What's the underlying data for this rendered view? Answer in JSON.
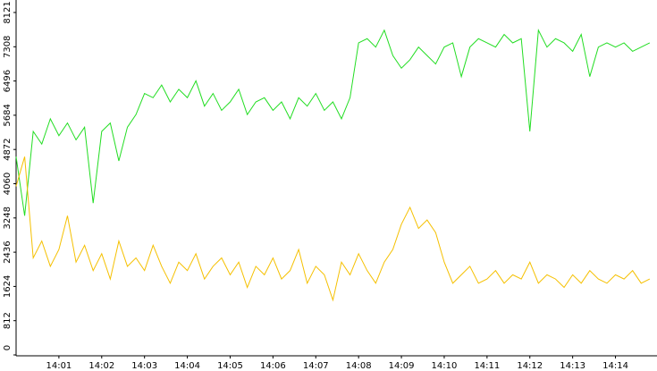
{
  "chart_data": {
    "type": "line",
    "x": [
      0,
      0.2,
      0.4,
      0.6,
      0.8,
      1,
      1.2,
      1.4,
      1.6,
      1.8,
      2,
      2.2,
      2.4,
      2.6,
      2.8,
      3,
      3.2,
      3.4,
      3.6,
      3.8,
      4,
      4.2,
      4.4,
      4.6,
      4.8,
      5,
      5.2,
      5.4,
      5.6,
      5.8,
      6,
      6.2,
      6.4,
      6.6,
      6.8,
      7,
      7.2,
      7.4,
      7.6,
      7.8,
      8,
      8.2,
      8.4,
      8.6,
      8.8,
      9,
      9.2,
      9.4,
      9.6,
      9.8,
      10,
      10.2,
      10.4,
      10.6,
      10.8,
      11,
      11.2,
      11.4,
      11.6,
      11.8,
      12,
      12.2,
      12.4,
      12.6,
      12.8,
      13,
      13.2,
      13.4,
      13.6,
      13.8,
      14,
      14.2,
      14.4,
      14.6,
      14.8
    ],
    "series": [
      {
        "color": "#22dd22",
        "values": [
          4700,
          3300,
          5300,
          5000,
          5600,
          5200,
          5500,
          5100,
          5400,
          3600,
          5300,
          5500,
          4600,
          5400,
          5700,
          6200,
          6100,
          6400,
          6000,
          6300,
          6100,
          6500,
          5900,
          6200,
          5800,
          6000,
          6300,
          5700,
          6000,
          6100,
          5800,
          6000,
          5600,
          6100,
          5900,
          6200,
          5800,
          6000,
          5600,
          6100,
          7400,
          7500,
          7300,
          7700,
          7100,
          6800,
          7000,
          7300,
          7100,
          6900,
          7300,
          7400,
          6600,
          7300,
          7500,
          7400,
          7300,
          7600,
          7400,
          7500,
          5300,
          7700,
          7300,
          7500,
          7400,
          7200,
          7600,
          6600,
          7300,
          7400,
          7300,
          7400,
          7200,
          7300,
          7400
        ]
      },
      {
        "color": "#f5c000",
        "values": [
          4000,
          4700,
          2300,
          2700,
          2100,
          2500,
          3300,
          2200,
          2600,
          2000,
          2400,
          1800,
          2700,
          2100,
          2300,
          2000,
          2600,
          2100,
          1700,
          2200,
          2000,
          2400,
          1800,
          2100,
          2300,
          1900,
          2200,
          1600,
          2100,
          1900,
          2300,
          1800,
          2000,
          2500,
          1700,
          2100,
          1900,
          1300,
          2200,
          1900,
          2400,
          2000,
          1700,
          2200,
          2500,
          3100,
          3500,
          3000,
          3200,
          2900,
          2200,
          1700,
          1900,
          2100,
          1700,
          1800,
          2000,
          1700,
          1900,
          1800,
          2200,
          1700,
          1900,
          1800,
          1600,
          1900,
          1700,
          2000,
          1800,
          1700,
          1900,
          1800,
          2000,
          1700,
          1800
        ]
      }
    ],
    "xlim": [
      0,
      14.97
    ],
    "xticks": [
      {
        "value": 1,
        "label": "14:01"
      },
      {
        "value": 2,
        "label": "14:02"
      },
      {
        "value": 3,
        "label": "14:03"
      },
      {
        "value": 4,
        "label": "14:04"
      },
      {
        "value": 5,
        "label": "14:05"
      },
      {
        "value": 6,
        "label": "14:06"
      },
      {
        "value": 7,
        "label": "14:07"
      },
      {
        "value": 8,
        "label": "14:08"
      },
      {
        "value": 9,
        "label": "14:09"
      },
      {
        "value": 10,
        "label": "14:10"
      },
      {
        "value": 11,
        "label": "14:11"
      },
      {
        "value": 12,
        "label": "14:12"
      },
      {
        "value": 13,
        "label": "14:13"
      },
      {
        "value": 14,
        "label": "14:14"
      }
    ],
    "ylim": [
      0,
      8417
    ],
    "yticks": [
      0,
      812,
      1624,
      2436,
      3248,
      4060,
      4872,
      5684,
      6496,
      7308,
      8121
    ]
  }
}
